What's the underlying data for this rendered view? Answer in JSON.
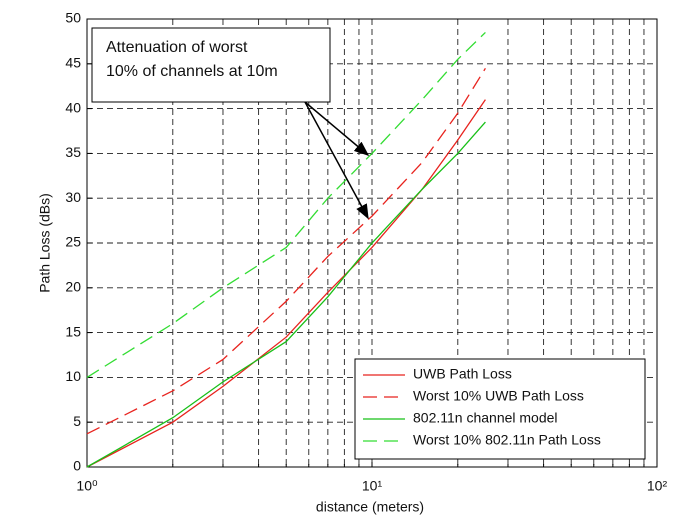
{
  "chart_data": {
    "type": "line",
    "annotation": [
      "Attenuation of worst",
      "10% of channels at 10m"
    ],
    "xlabel": "distance (meters)",
    "ylabel": "Path Loss (dBs)",
    "xscale": "log",
    "grid": true,
    "minor_grid": true,
    "legend": "lower right",
    "xlim": [
      1,
      100
    ],
    "xticks": [
      {
        "value": 1,
        "label": "10⁰"
      },
      {
        "value": 10,
        "label": "10¹"
      },
      {
        "value": 100,
        "label": "10²"
      }
    ],
    "ylim": [
      0,
      50
    ],
    "yticks": [
      0,
      5,
      10,
      15,
      20,
      25,
      30,
      35,
      40,
      45,
      50
    ],
    "x": [
      1,
      2,
      3,
      5,
      7,
      10,
      15,
      20,
      25
    ],
    "series": [
      {
        "name": "UWB Path Loss",
        "color": "#e8231e",
        "dashed": false,
        "values": [
          0,
          5,
          9,
          14.5,
          19.5,
          24.5,
          31,
          36.5,
          41
        ]
      },
      {
        "name": "Worst 10% UWB Path Loss",
        "color": "#e8231e",
        "dashed": true,
        "values": [
          3.7,
          8.5,
          12,
          18.5,
          23.5,
          28,
          34,
          39.5,
          44.5
        ]
      },
      {
        "name": "802.11n channel model",
        "color": "#18c018",
        "dashed": false,
        "values": [
          0,
          5.5,
          9.5,
          14,
          19,
          25,
          31,
          35,
          38.5
        ]
      },
      {
        "name": "Worst 10% 802.11n Path Loss",
        "color": "#33dd33",
        "dashed": true,
        "values": [
          10,
          16,
          20,
          24.5,
          30,
          35,
          41,
          45.5,
          48.5
        ]
      }
    ]
  }
}
